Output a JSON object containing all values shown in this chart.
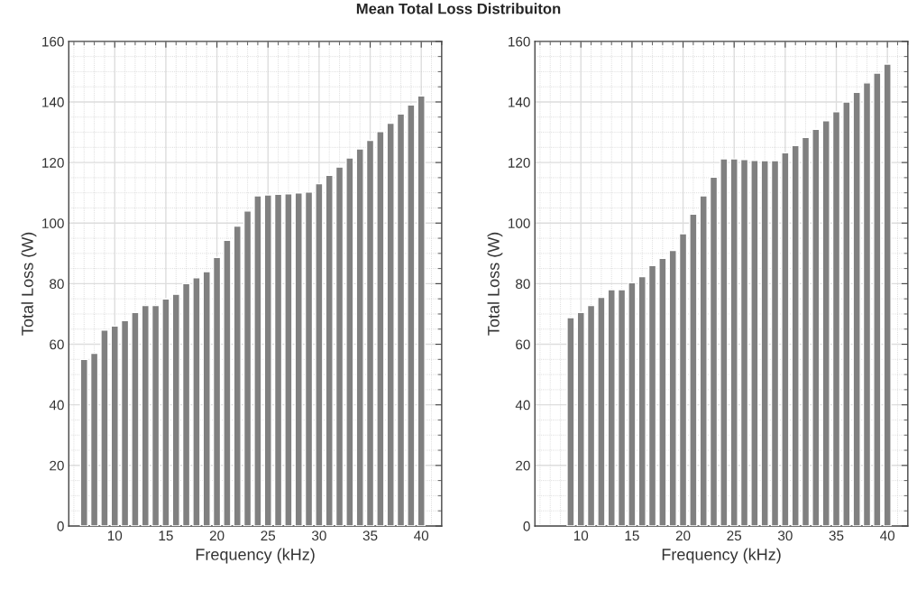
{
  "chart_data": [
    {
      "type": "bar",
      "title": "Mean Total Loss Distribuiton",
      "xlabel": "Frequency (kHz)",
      "ylabel": "Total Loss (W)",
      "color": "#808080",
      "x": [
        7,
        8,
        9,
        10,
        11,
        12,
        13,
        14,
        15,
        16,
        17,
        18,
        19,
        20,
        21,
        22,
        23,
        24,
        25,
        26,
        27,
        28,
        29,
        30,
        31,
        32,
        33,
        34,
        35,
        36,
        37,
        38,
        39,
        40
      ],
      "values": [
        55,
        57,
        64.7,
        66,
        67.8,
        70.5,
        72.8,
        72.8,
        75,
        76.5,
        80,
        82,
        84,
        88.7,
        94.3,
        99,
        104,
        109,
        109.3,
        109.5,
        109.7,
        110,
        110.3,
        113,
        115.8,
        118.5,
        121.5,
        124.5,
        127.3,
        130.2,
        133,
        136,
        139,
        142
      ],
      "xlim": [
        5.5,
        42
      ],
      "xticks": [
        10,
        15,
        20,
        25,
        30,
        35,
        40
      ],
      "ylim": [
        0,
        160
      ],
      "yticks": [
        0,
        20,
        40,
        60,
        80,
        100,
        120,
        140,
        160
      ],
      "grid": true
    },
    {
      "type": "bar",
      "xlabel": "Frequency (kHz)",
      "ylabel": "Total Loss (W)",
      "color": "#808080",
      "x": [
        9,
        10,
        11,
        12,
        13,
        14,
        15,
        16,
        17,
        18,
        19,
        20,
        21,
        22,
        23,
        24,
        25,
        26,
        27,
        28,
        29,
        30,
        31,
        32,
        33,
        34,
        35,
        36,
        37,
        38,
        39,
        40
      ],
      "values": [
        68.8,
        70.5,
        72.8,
        75.5,
        78,
        78,
        80.3,
        82.3,
        86,
        88.4,
        91,
        96.5,
        103,
        109,
        115.2,
        121.2,
        121.2,
        121,
        120.7,
        120.6,
        120.6,
        123.2,
        125.6,
        128.3,
        131,
        133.8,
        136.8,
        140,
        143.2,
        146.3,
        149.5,
        152.5
      ],
      "xlim": [
        5.5,
        42
      ],
      "xticks": [
        10,
        15,
        20,
        25,
        30,
        35,
        40
      ],
      "ylim": [
        0,
        160
      ],
      "yticks": [
        0,
        20,
        40,
        60,
        80,
        100,
        120,
        140,
        160
      ],
      "grid": true
    }
  ]
}
